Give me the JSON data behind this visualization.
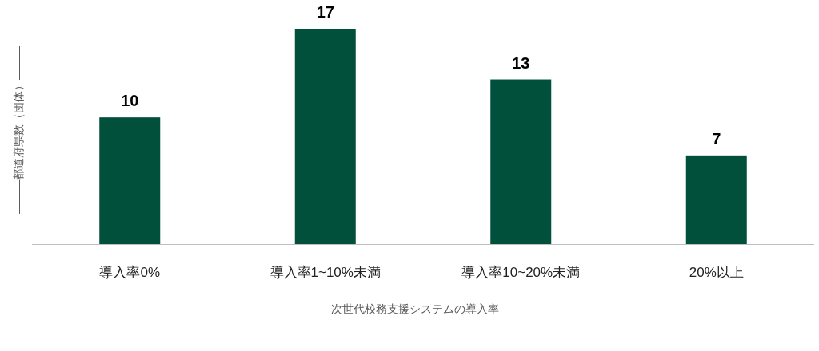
{
  "chart_data": {
    "type": "bar",
    "xlabel": "―――次世代校務支援システムの導入率―――",
    "ylabel": "―――都道府県数（団体）―――",
    "categories": [
      "導入率0%",
      "導入率1~10%未満",
      "導入率10~20%未満",
      "20%以上"
    ],
    "values": [
      10,
      17,
      13,
      7
    ],
    "color": "#00503c",
    "data_labels": true
  }
}
